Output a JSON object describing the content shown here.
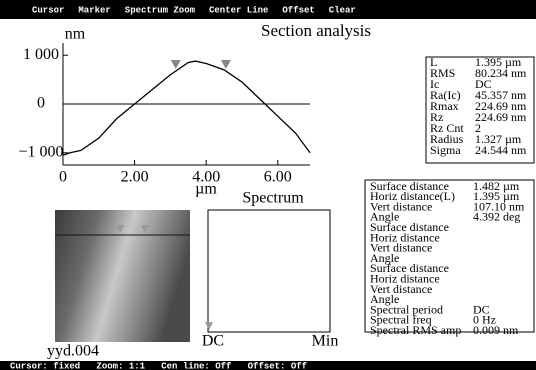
{
  "menu": [
    "Cursor",
    "Marker",
    "Spectrum Zoom",
    "Center Line",
    "Offset",
    "Clear"
  ],
  "status": "Cursor: fixed   Zoom: 1:1   Cen line: Off   Offset: Off",
  "chart_data": {
    "type": "line",
    "title": "Section analysis",
    "y_label": "nm",
    "x_label": "µm",
    "x": [
      0,
      0.2,
      0.5,
      1,
      1.5,
      2,
      2.5,
      3,
      3.5,
      3.7,
      4,
      4.5,
      5,
      5.5,
      6,
      6.5,
      6.9
    ],
    "series": [
      {
        "color": "#000000",
        "values": [
          -1050,
          -1000,
          -950,
          -700,
          -300,
          0,
          300,
          600,
          850,
          880,
          830,
          700,
          450,
          100,
          -250,
          -600,
          -1000
        ]
      }
    ],
    "cursors": [
      3.15,
      4.55
    ],
    "xlim": [
      0,
      6.9
    ],
    "ylim": [
      -1250,
      1250
    ],
    "xticks": [
      0,
      {
        "value": 2,
        "label": "2.00"
      },
      {
        "value": 4,
        "label": "4.00"
      },
      {
        "value": 6,
        "label": "6.00"
      }
    ],
    "yticks": [
      {
        "value": 1000,
        "label": "1 000"
      },
      0,
      {
        "value": -1000,
        "label": "−1 000"
      }
    ]
  },
  "roughness": [
    {
      "label": "L",
      "value": "1.395 µm"
    },
    {
      "label": "RMS",
      "value": "80.234 nm"
    },
    {
      "label": "Ic",
      "value": "DC"
    },
    {
      "label": "Ra(Ic)",
      "value": "45.357 nm"
    },
    {
      "label": "Rmax",
      "value": "224.69 nm"
    },
    {
      "label": "Rz",
      "value": "224.69 nm"
    },
    {
      "label": "Rz  Cnt",
      "value": "2"
    },
    {
      "label": "Radius",
      "value": "1.327 µm"
    },
    {
      "label": "Sigma",
      "value": "24.544 nm"
    }
  ],
  "distances": [
    {
      "label": "Surface distance",
      "value": "1.482 µm"
    },
    {
      "label": "Horiz distance(L)",
      "value": "1.395 µm"
    },
    {
      "label": "Vert distance",
      "value": "107.10 nm"
    },
    {
      "label": "Angle",
      "value": "4.392 deg"
    },
    {
      "label": "Surface distance"
    },
    {
      "label": "Horiz distance"
    },
    {
      "label": "Vert distance"
    },
    {
      "label": "Angle"
    },
    {
      "label": "Surface distance"
    },
    {
      "label": "Horiz distance"
    },
    {
      "label": "Vert distance"
    },
    {
      "label": "Angle"
    },
    {
      "label": "Spectral  period",
      "value": "DC"
    },
    {
      "label": "Spectral  freq",
      "value": "0 Hz"
    },
    {
      "label": "Spectral  RMS amp",
      "value": "0.009 nm"
    }
  ],
  "image_name": "yyd.004",
  "spectrum": {
    "title": "Spectrum",
    "left": "DC",
    "right": "Min"
  }
}
